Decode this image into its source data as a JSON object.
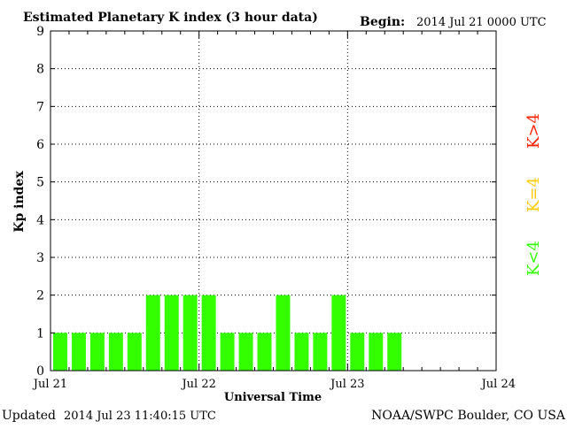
{
  "chart_data": {
    "type": "bar",
    "title": "Estimated Planetary K index (3 hour data)",
    "begin_label": "Begin:",
    "begin_value": "2014 Jul 21 0000 UTC",
    "xlabel": "Universal Time",
    "ylabel": "Kp index",
    "ylim": [
      0,
      9
    ],
    "yticks": [
      "0",
      "1",
      "2",
      "3",
      "4",
      "5",
      "6",
      "7",
      "8",
      "9"
    ],
    "xticks": [
      "Jul 21",
      "Jul 22",
      "Jul 23",
      "Jul 24"
    ],
    "grid": true,
    "bar_interval_hours": 3,
    "total_intervals": 24,
    "values": [
      1,
      1,
      1,
      1,
      1,
      2,
      2,
      2,
      2,
      1,
      1,
      1,
      2,
      1,
      1,
      2,
      1,
      1,
      1
    ],
    "colors": {
      "low": "#33ff00",
      "equal": "#ffcc00",
      "high": "#ff2200"
    },
    "legend": [
      "K<4",
      "K=4",
      "K>4"
    ]
  },
  "footer": {
    "updated_prefix": "Updated",
    "updated_value": "2014 Jul 23 11:40:15 UTC",
    "credit": "NOAA/SWPC Boulder, CO USA"
  }
}
